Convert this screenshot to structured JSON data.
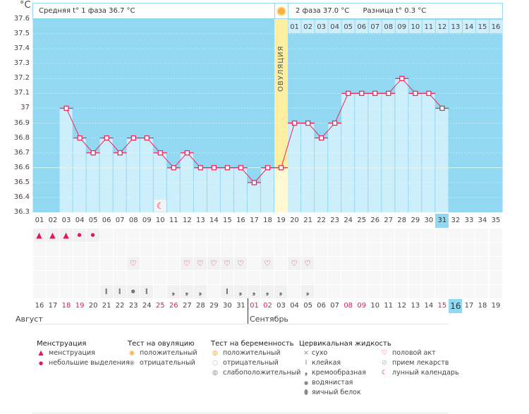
{
  "axis": {
    "unit": "°C",
    "ticks": [
      "37.6",
      "37.5",
      "37.4",
      "37.3",
      "37.2",
      "37.1",
      "37",
      "36.9",
      "36.8",
      "36.7",
      "36.6",
      "36.5",
      "36.4",
      "36.3"
    ]
  },
  "header": {
    "phase1": "Средняя t° 1 фаза 36.7 °C",
    "phase2": "2 фаза 37.0 °C",
    "diff": "Разница t° 0.3 °C"
  },
  "ovulation_label": "ОВУЛЯЦИЯ",
  "colors": {
    "sky": "#93d8f2",
    "bar": "#cdeefb",
    "line": "#f0275c",
    "ovulation": "#fdeea0"
  },
  "chart_data": {
    "type": "line",
    "ylim": [
      36.3,
      37.6
    ],
    "coverline": 36.6,
    "ovulation_day": 19,
    "lunar_day": 10,
    "days": [
      "01",
      "02",
      "03",
      "04",
      "05",
      "06",
      "07",
      "08",
      "09",
      "10",
      "11",
      "12",
      "13",
      "14",
      "15",
      "16",
      "17",
      "18",
      "19",
      "20",
      "21",
      "22",
      "23",
      "24",
      "25",
      "26",
      "27",
      "28",
      "29",
      "30",
      "31",
      "32",
      "33",
      "34",
      "35"
    ],
    "temps": [
      null,
      null,
      37.0,
      36.8,
      36.7,
      36.8,
      36.7,
      36.8,
      36.8,
      36.7,
      36.6,
      36.7,
      36.6,
      36.6,
      36.6,
      36.6,
      36.5,
      36.6,
      36.6,
      36.9,
      36.9,
      36.8,
      36.9,
      37.1,
      37.1,
      37.1,
      37.1,
      37.2,
      37.1,
      37.1,
      37.0,
      null,
      null,
      null,
      null
    ],
    "current_day": 31
  },
  "phase2_days": [
    "01",
    "02",
    "03",
    "04",
    "05",
    "06",
    "07",
    "08",
    "09",
    "10",
    "11",
    "12",
    "13",
    "14",
    "15",
    "16"
  ],
  "menstruation": {
    "1": "heavy",
    "2": "heavy",
    "3": "heavy",
    "4": "light",
    "5": "light"
  },
  "intercourse": [
    8,
    12,
    13,
    14,
    15,
    16,
    18,
    20,
    21
  ],
  "cervical": {
    "6": "sticky",
    "7": "sticky",
    "8": "watery",
    "9": "sticky",
    "11": "creamy",
    "12": "creamy",
    "13": "creamy",
    "15": "sticky",
    "16": "creamy",
    "17": "creamy",
    "18": "creamy",
    "19": "creamy",
    "21": "creamy"
  },
  "dates": [
    "16",
    "17",
    "18",
    "19",
    "20",
    "21",
    "22",
    "23",
    "24",
    "25",
    "26",
    "27",
    "28",
    "29",
    "30",
    "31",
    "01",
    "02",
    "03",
    "04",
    "05",
    "06",
    "07",
    "08",
    "09",
    "10",
    "11",
    "12",
    "13",
    "14",
    "15",
    "16",
    "17",
    "18",
    "19"
  ],
  "red_dates": [
    2,
    3,
    9,
    10,
    16,
    17,
    23,
    24,
    30
  ],
  "today_date_index": 31,
  "months": {
    "aug": "Август",
    "sep": "Сентябрь"
  },
  "legend": {
    "menstruation": {
      "title": "Менструация",
      "items": [
        "менструация",
        "небольшие выделения"
      ]
    },
    "ovulation_test": {
      "title": "Тест на овуляцию",
      "items": [
        "положительный",
        "отрицательный"
      ]
    },
    "pregnancy_test": {
      "title": "Тест на беременность",
      "items": [
        "положительный",
        "отрицательный",
        "слабоположительный"
      ]
    },
    "cervical": {
      "title": "Цервикальная жидкость",
      "items": [
        "сухо",
        "клейкая",
        "кремообразная",
        "водянистая",
        "яичный белок"
      ]
    },
    "other": {
      "items": [
        "половой акт",
        "прием лекарств",
        "лунный календарь"
      ]
    }
  }
}
